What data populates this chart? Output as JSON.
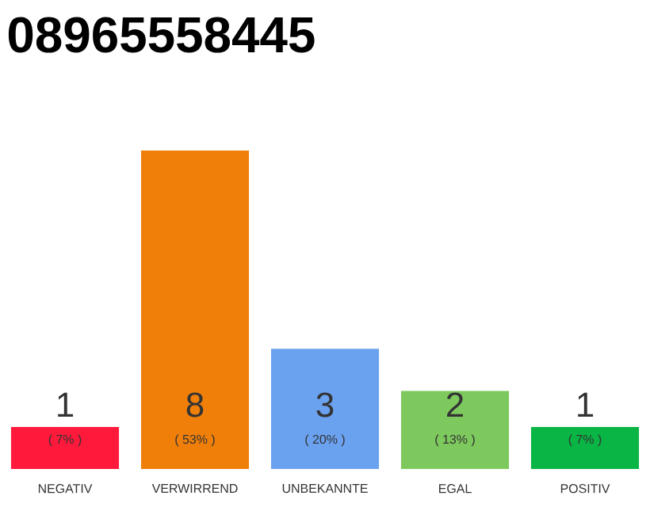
{
  "chart_data": {
    "type": "bar",
    "title": "08965558445",
    "categories": [
      "NEGATIV",
      "VERWIRREND",
      "UNBEKANNTE",
      "EGAL",
      "POSITIV"
    ],
    "values": [
      7,
      53,
      20,
      13,
      7
    ],
    "colors": [
      "#ff1a3c",
      "#f07f0a",
      "#6aa2f0",
      "#7dc95e",
      "#09b544"
    ],
    "value_labels": [
      "( 7% )",
      "( 53% )",
      "( 20% )",
      "( 13% )",
      "( 7% )"
    ],
    "annotations": [
      "1",
      "8",
      "3",
      "2",
      "1"
    ]
  }
}
